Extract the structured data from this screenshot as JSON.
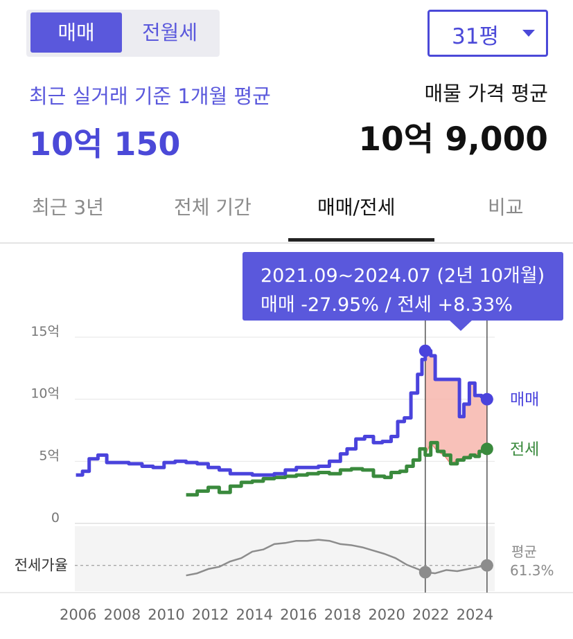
{
  "toggle": {
    "sale_label": "매매",
    "rent_label": "전월세"
  },
  "size_select": {
    "value": "31평"
  },
  "summary": {
    "left_caption": "최근 실거래 기준 1개월 평균",
    "left_value": "10억 150",
    "right_caption": "매물 가격 평균",
    "right_value": "10억 9,000"
  },
  "tabs": [
    {
      "label": "최근 3년"
    },
    {
      "label": "전체 기간"
    },
    {
      "label": "매매/전세"
    },
    {
      "label": "비교"
    }
  ],
  "tooltip": {
    "line1": "2021.09~2024.07 (2년 10개월)",
    "line2": "매매 -27.95%  /  전세 +8.33%"
  },
  "colors": {
    "sale": "#4a43dc",
    "jeonse": "#3a8a3d",
    "ratio": "#8c8c8c",
    "accent": "#5a58dc",
    "highlight_fill": "#f7b6ad",
    "highlight_stroke": "#f08b7c"
  },
  "chart_data": {
    "type": "line",
    "y_unit": "억",
    "ylim": [
      0,
      15
    ],
    "y_ticks": [
      {
        "value": 0,
        "label": "0"
      },
      {
        "value": 5,
        "label": "5억"
      },
      {
        "value": 10,
        "label": "10억"
      },
      {
        "value": 15,
        "label": "15억"
      }
    ],
    "x_ticks": [
      "2006",
      "2008",
      "2010",
      "2012",
      "2014",
      "2016",
      "2018",
      "2020",
      "2022",
      "2024"
    ],
    "xlim": [
      2005.85,
      2024.9
    ],
    "highlight_range": [
      2021.75,
      2024.55
    ],
    "series": [
      {
        "name": "매매",
        "x": [
          2005.9,
          2006.2,
          2006.5,
          2006.9,
          2007.3,
          2007.8,
          2008.3,
          2008.9,
          2009.4,
          2009.9,
          2010.4,
          2010.9,
          2011.4,
          2011.9,
          2012.4,
          2012.9,
          2013.4,
          2013.9,
          2014.4,
          2014.9,
          2015.4,
          2015.9,
          2016.4,
          2016.9,
          2017.4,
          2017.9,
          2018.2,
          2018.6,
          2019.0,
          2019.4,
          2019.8,
          2020.2,
          2020.5,
          2020.8,
          2021.1,
          2021.4,
          2021.6,
          2021.75,
          2022.0,
          2022.2,
          2022.6,
          2023.0,
          2023.3,
          2023.5,
          2023.75,
          2024.0,
          2024.3,
          2024.55
        ],
        "values": [
          3.9,
          4.2,
          5.2,
          5.5,
          4.9,
          4.9,
          4.8,
          4.6,
          4.5,
          4.9,
          5.0,
          4.9,
          4.8,
          4.5,
          4.3,
          4.0,
          4.0,
          3.9,
          3.9,
          4.0,
          4.3,
          4.5,
          4.5,
          4.6,
          5.0,
          5.6,
          6.0,
          6.8,
          7.0,
          6.5,
          6.6,
          7.0,
          8.2,
          8.5,
          10.5,
          12.0,
          13.2,
          13.9,
          13.5,
          11.6,
          11.6,
          11.6,
          8.6,
          9.6,
          11.3,
          10.3,
          10.2,
          10.0
        ]
      },
      {
        "name": "전세",
        "x": [
          2010.9,
          2011.4,
          2011.9,
          2012.4,
          2012.9,
          2013.4,
          2013.9,
          2014.4,
          2014.9,
          2015.4,
          2015.9,
          2016.4,
          2016.9,
          2017.4,
          2017.9,
          2018.4,
          2018.9,
          2019.4,
          2019.9,
          2020.2,
          2020.6,
          2020.9,
          2021.2,
          2021.5,
          2021.75,
          2022.0,
          2022.3,
          2022.6,
          2022.9,
          2023.2,
          2023.5,
          2023.8,
          2024.0,
          2024.2,
          2024.4,
          2024.55
        ],
        "values": [
          2.3,
          2.6,
          2.9,
          2.5,
          3.0,
          3.3,
          3.4,
          3.6,
          3.7,
          3.8,
          3.9,
          4.0,
          4.1,
          4.0,
          4.3,
          4.4,
          4.3,
          3.8,
          3.7,
          4.1,
          4.2,
          4.6,
          5.1,
          6.0,
          5.5,
          6.5,
          5.8,
          5.5,
          4.8,
          5.1,
          5.3,
          5.5,
          5.4,
          5.8,
          6.0,
          6.0
        ]
      }
    ],
    "ratio_series": {
      "label": "전세가율",
      "end_caption": "평균",
      "end_value": "61.3%",
      "x": [
        2010.9,
        2011.4,
        2011.9,
        2012.4,
        2012.9,
        2013.4,
        2013.9,
        2014.4,
        2014.9,
        2015.4,
        2015.9,
        2016.4,
        2016.9,
        2017.4,
        2017.9,
        2018.4,
        2018.9,
        2019.4,
        2019.9,
        2020.4,
        2020.9,
        2021.4,
        2021.75,
        2022.2,
        2022.7,
        2023.2,
        2023.7,
        2024.2,
        2024.55
      ],
      "values": [
        52,
        54,
        58,
        60,
        65,
        68,
        74,
        76,
        81,
        82,
        84,
        84,
        85,
        84,
        81,
        80,
        78,
        75,
        72,
        68,
        62,
        58,
        55,
        54,
        57,
        56,
        58,
        60,
        61.3
      ]
    }
  }
}
